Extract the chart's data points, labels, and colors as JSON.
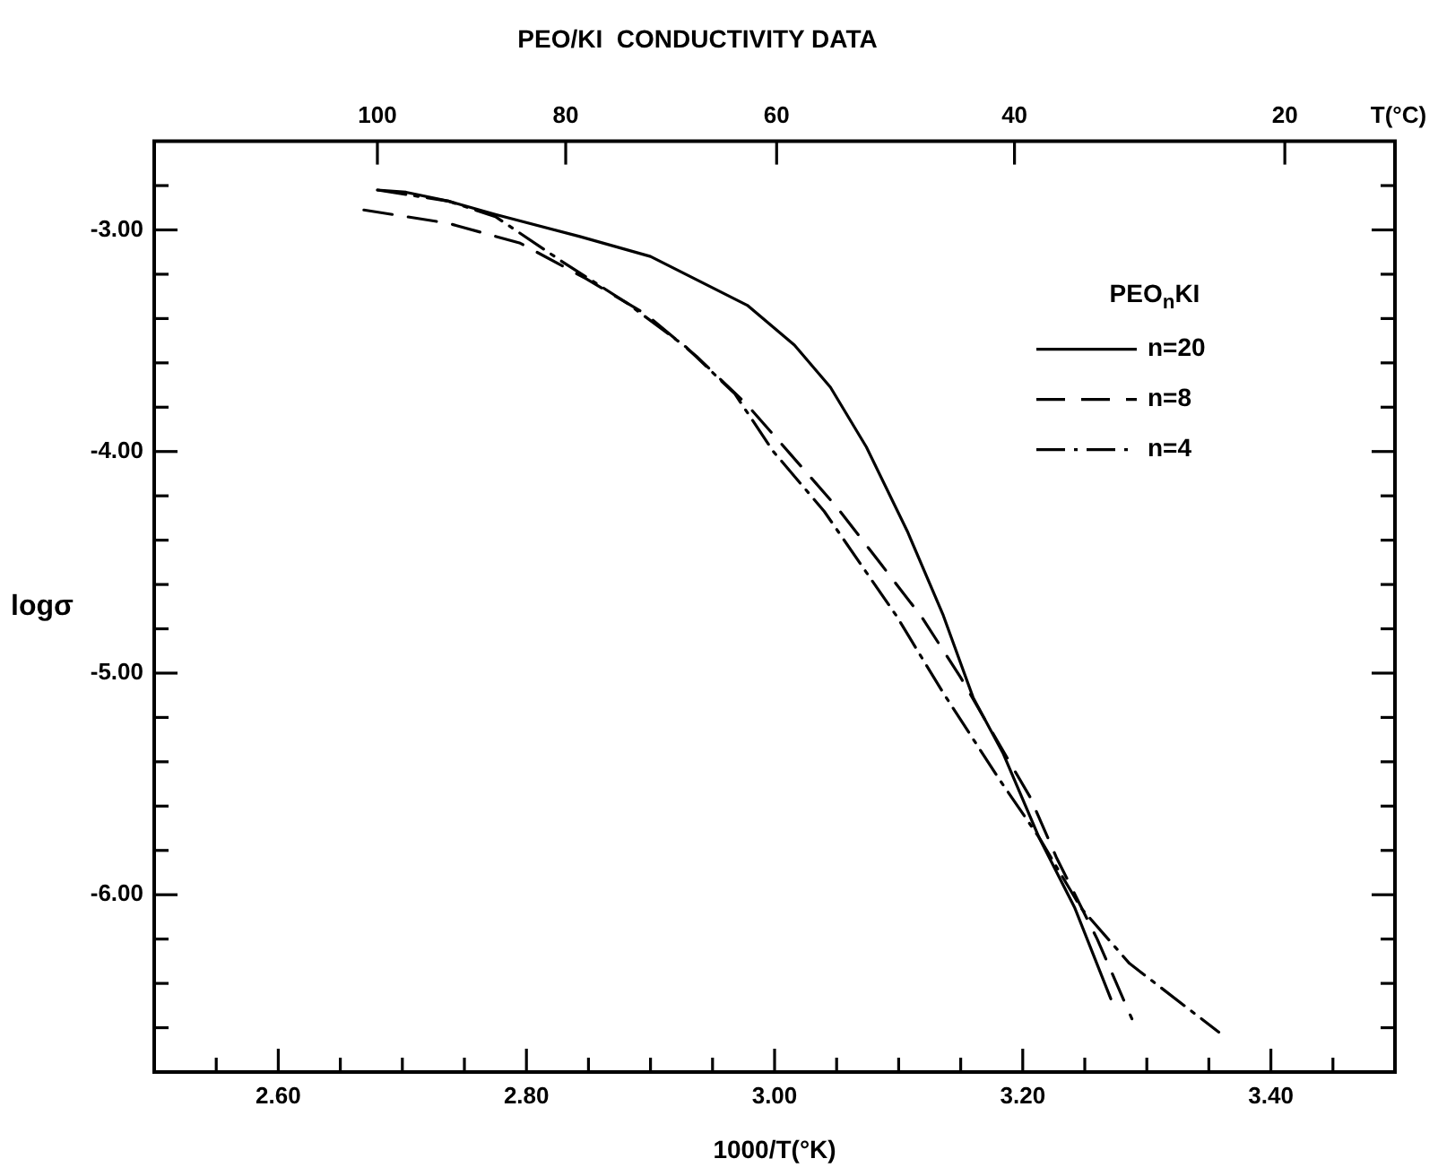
{
  "chart_data": {
    "type": "line",
    "title": "PEO/KI  CONDUCTIVITY DATA",
    "xlabel": "1000/T(°K)",
    "ylabel": "logσ",
    "x2label": "T(°C)",
    "legend_title": "PEO$_{n}$KI",
    "legend": "top right",
    "grid": false,
    "marker": "none",
    "xlim": [
      2.5,
      3.5
    ],
    "ylim": [
      -6.8,
      -2.6
    ],
    "xticks": [
      {
        "value": 2.55,
        "label": null
      },
      {
        "value": 2.6,
        "label": "2.60"
      },
      {
        "value": 2.65,
        "label": null
      },
      {
        "value": 2.7,
        "label": null
      },
      {
        "value": 2.75,
        "label": null
      },
      {
        "value": 2.8,
        "label": "2.80"
      },
      {
        "value": 2.85,
        "label": null
      },
      {
        "value": 2.9,
        "label": null
      },
      {
        "value": 2.95,
        "label": null
      },
      {
        "value": 3.0,
        "label": "3.00"
      },
      {
        "value": 3.05,
        "label": null
      },
      {
        "value": 3.1,
        "label": null
      },
      {
        "value": 3.15,
        "label": null
      },
      {
        "value": 3.2,
        "label": "3.20"
      },
      {
        "value": 3.25,
        "label": null
      },
      {
        "value": 3.3,
        "label": null
      },
      {
        "value": 3.35,
        "label": null
      },
      {
        "value": 3.4,
        "label": "3.40"
      },
      {
        "value": 3.45,
        "label": null
      }
    ],
    "annotations": [
      "100",
      "80",
      "60",
      "40",
      "20"
    ],
    "yticks": [
      {
        "value": -6.6,
        "label": null
      },
      {
        "value": -6.4,
        "label": null
      },
      {
        "value": -6.2,
        "label": null
      },
      {
        "value": -6,
        "label": "-6.00"
      },
      {
        "value": -5.8,
        "label": null
      },
      {
        "value": -5.6,
        "label": null
      },
      {
        "value": -5.4,
        "label": null
      },
      {
        "value": -5.2,
        "label": null
      },
      {
        "value": -5,
        "label": "-5.00"
      },
      {
        "value": -4.8,
        "label": null
      },
      {
        "value": -4.6,
        "label": null
      },
      {
        "value": -4.4,
        "label": null
      },
      {
        "value": -4.2,
        "label": null
      },
      {
        "value": -4,
        "label": "-4.00"
      },
      {
        "value": -3.8,
        "label": null
      },
      {
        "value": -3.6,
        "label": null
      },
      {
        "value": -3.4,
        "label": null
      },
      {
        "value": -3.2,
        "label": null
      },
      {
        "value": -3,
        "label": "-3.00"
      },
      {
        "value": -2.8,
        "label": null
      }
    ],
    "series": [
      {
        "name": "n=20",
        "color": "#000000",
        "line_style": "solid",
        "x": [
          2.68,
          2.703,
          2.737,
          2.775,
          2.843,
          2.9,
          2.978,
          3.016,
          3.045,
          3.074,
          3.107,
          3.136,
          3.16,
          3.184,
          3.213,
          3.242,
          3.271
        ],
        "values": [
          -2.82,
          -2.83,
          -2.87,
          -2.93,
          -3.03,
          -3.12,
          -3.34,
          -3.52,
          -3.71,
          -3.98,
          -4.36,
          -4.74,
          -5.11,
          -5.36,
          -5.74,
          -6.06,
          -6.47
        ]
      },
      {
        "name": "n=8",
        "color": "#000000",
        "line_style": "dashed",
        "x": [
          2.669,
          2.737,
          2.795,
          2.848,
          2.896,
          2.937,
          2.978,
          3.014,
          3.05,
          3.086,
          3.119,
          3.15,
          3.182,
          3.206,
          3.227,
          3.26,
          3.288
        ],
        "values": [
          -2.91,
          -2.97,
          -3.06,
          -3.22,
          -3.38,
          -3.57,
          -3.79,
          -4.02,
          -4.25,
          -4.51,
          -4.75,
          -5.02,
          -5.33,
          -5.56,
          -5.83,
          -6.2,
          -6.56
        ]
      },
      {
        "name": "n=4",
        "color": "#000000",
        "line_style": "dashdot",
        "x": [
          2.68,
          2.737,
          2.775,
          2.828,
          2.881,
          2.929,
          2.968,
          2.999,
          3.04,
          3.098,
          3.136,
          3.18,
          3.213,
          3.247,
          3.286,
          3.358
        ],
        "values": [
          -2.82,
          -2.87,
          -2.94,
          -3.14,
          -3.33,
          -3.53,
          -3.74,
          -4.0,
          -4.27,
          -4.74,
          -5.09,
          -5.47,
          -5.74,
          -6.06,
          -6.31,
          -6.62
        ]
      }
    ]
  }
}
